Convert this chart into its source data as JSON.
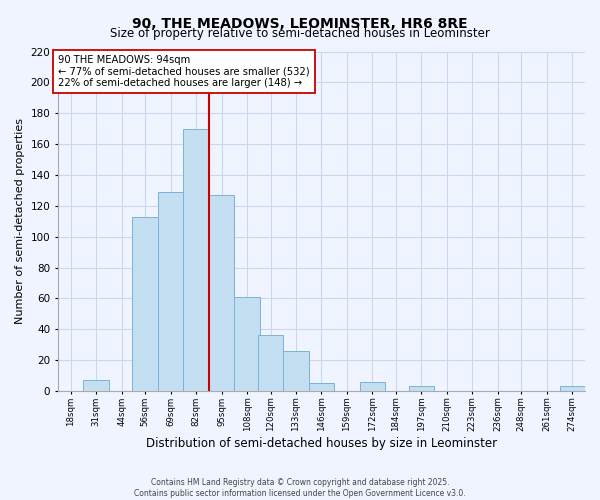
{
  "title": "90, THE MEADOWS, LEOMINSTER, HR6 8RE",
  "subtitle": "Size of property relative to semi-detached houses in Leominster",
  "xlabel": "Distribution of semi-detached houses by size in Leominster",
  "ylabel": "Number of semi-detached properties",
  "bin_labels": [
    "18sqm",
    "31sqm",
    "44sqm",
    "56sqm",
    "69sqm",
    "82sqm",
    "95sqm",
    "108sqm",
    "120sqm",
    "133sqm",
    "146sqm",
    "159sqm",
    "172sqm",
    "184sqm",
    "197sqm",
    "210sqm",
    "223sqm",
    "236sqm",
    "248sqm",
    "261sqm",
    "274sqm"
  ],
  "bin_edges": [
    18,
    31,
    44,
    56,
    69,
    82,
    95,
    108,
    120,
    133,
    146,
    159,
    172,
    184,
    197,
    210,
    223,
    236,
    248,
    261,
    274
  ],
  "counts": [
    0,
    7,
    0,
    113,
    129,
    170,
    127,
    61,
    36,
    26,
    5,
    0,
    6,
    0,
    3,
    0,
    0,
    0,
    0,
    0,
    3
  ],
  "bar_color": "#c5dff2",
  "bar_edge_color": "#7ab3d9",
  "vline_x": 95,
  "vline_color": "#cc0000",
  "annotation_title": "90 THE MEADOWS: 94sqm",
  "annotation_line1": "← 77% of semi-detached houses are smaller (532)",
  "annotation_line2": "22% of semi-detached houses are larger (148) →",
  "annotation_box_color": "#ffffff",
  "annotation_box_edge": "#cc0000",
  "ylim": [
    0,
    220
  ],
  "yticks": [
    0,
    20,
    40,
    60,
    80,
    100,
    120,
    140,
    160,
    180,
    200,
    220
  ],
  "footer_line1": "Contains HM Land Registry data © Crown copyright and database right 2025.",
  "footer_line2": "Contains public sector information licensed under the Open Government Licence v3.0.",
  "background_color": "#f0f4ff",
  "grid_color": "#c8d8ee"
}
